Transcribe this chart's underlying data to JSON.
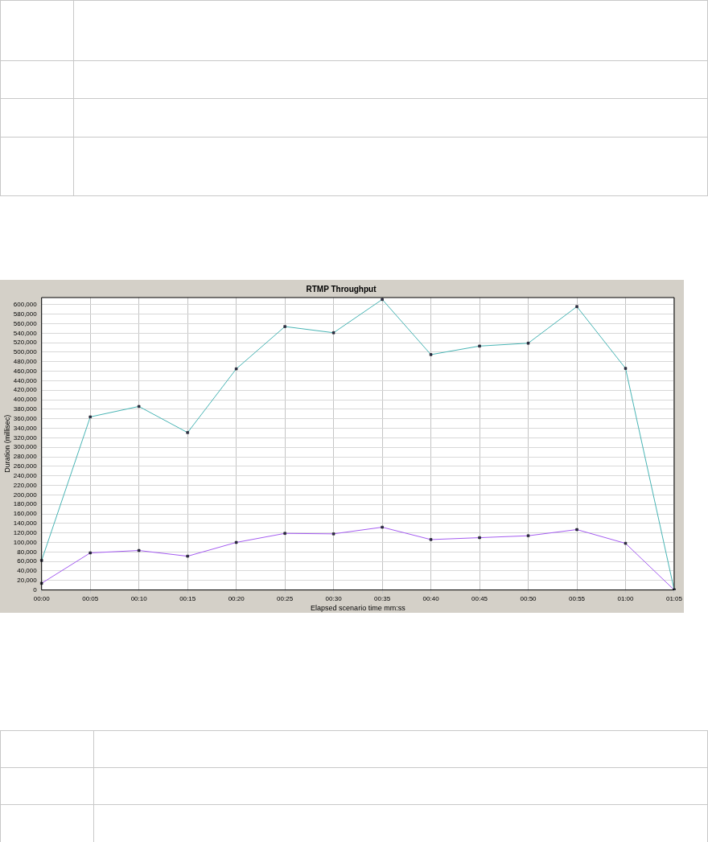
{
  "chart_data": {
    "type": "line",
    "title": "RTMP Throughput",
    "xlabel": "Elapsed scenario time mm:ss",
    "ylabel": "Duration (millisec)",
    "categories": [
      "00:00",
      "00:05",
      "00:10",
      "00:15",
      "00:20",
      "00:25",
      "00:30",
      "00:35",
      "00:40",
      "00:45",
      "00:50",
      "00:55",
      "01:00",
      "01:05"
    ],
    "series": [
      {
        "color": "#48b4b4",
        "values": [
          62000,
          364000,
          386000,
          331000,
          465000,
          554000,
          541000,
          611000,
          495000,
          513000,
          519000,
          596000,
          466000,
          0
        ]
      },
      {
        "color": "#a45cf0",
        "values": [
          14000,
          78000,
          83000,
          71000,
          100000,
          119000,
          118000,
          132000,
          106000,
          110000,
          114000,
          127000,
          98000,
          0
        ]
      }
    ],
    "ylim": [
      0,
      615000
    ],
    "yticks": [
      0,
      {
        "value": 20000,
        "label": "20,000"
      },
      {
        "value": 40000,
        "label": "40,000"
      },
      {
        "value": 60000,
        "label": "60,000"
      },
      {
        "value": 80000,
        "label": "80,000"
      },
      {
        "value": 100000,
        "label": "100,000"
      },
      {
        "value": 120000,
        "label": "120,000"
      },
      {
        "value": 140000,
        "label": "140,000"
      },
      {
        "value": 160000,
        "label": "160,000"
      },
      {
        "value": 180000,
        "label": "180,000"
      },
      {
        "value": 200000,
        "label": "200,000"
      },
      {
        "value": 220000,
        "label": "220,000"
      },
      {
        "value": 240000,
        "label": "240,000"
      },
      {
        "value": 260000,
        "label": "260,000"
      },
      {
        "value": 280000,
        "label": "280,000"
      },
      {
        "value": 300000,
        "label": "300,000"
      },
      {
        "value": 320000,
        "label": "320,000"
      },
      {
        "value": 340000,
        "label": "340,000"
      },
      {
        "value": 360000,
        "label": "360,000"
      },
      {
        "value": 380000,
        "label": "380,000"
      },
      {
        "value": 400000,
        "label": "400,000"
      },
      {
        "value": 420000,
        "label": "420,000"
      },
      {
        "value": 440000,
        "label": "440,000"
      },
      {
        "value": 460000,
        "label": "460,000"
      },
      {
        "value": 480000,
        "label": "480,000"
      },
      {
        "value": 500000,
        "label": "500,000"
      },
      {
        "value": 520000,
        "label": "520,000"
      },
      {
        "value": 540000,
        "label": "540,000"
      },
      {
        "value": 560000,
        "label": "560,000"
      },
      {
        "value": 580000,
        "label": "580,000"
      },
      {
        "value": 600000,
        "label": "600,000"
      }
    ],
    "grid": true,
    "legend": false,
    "marker": "square",
    "line_style": "solid"
  }
}
